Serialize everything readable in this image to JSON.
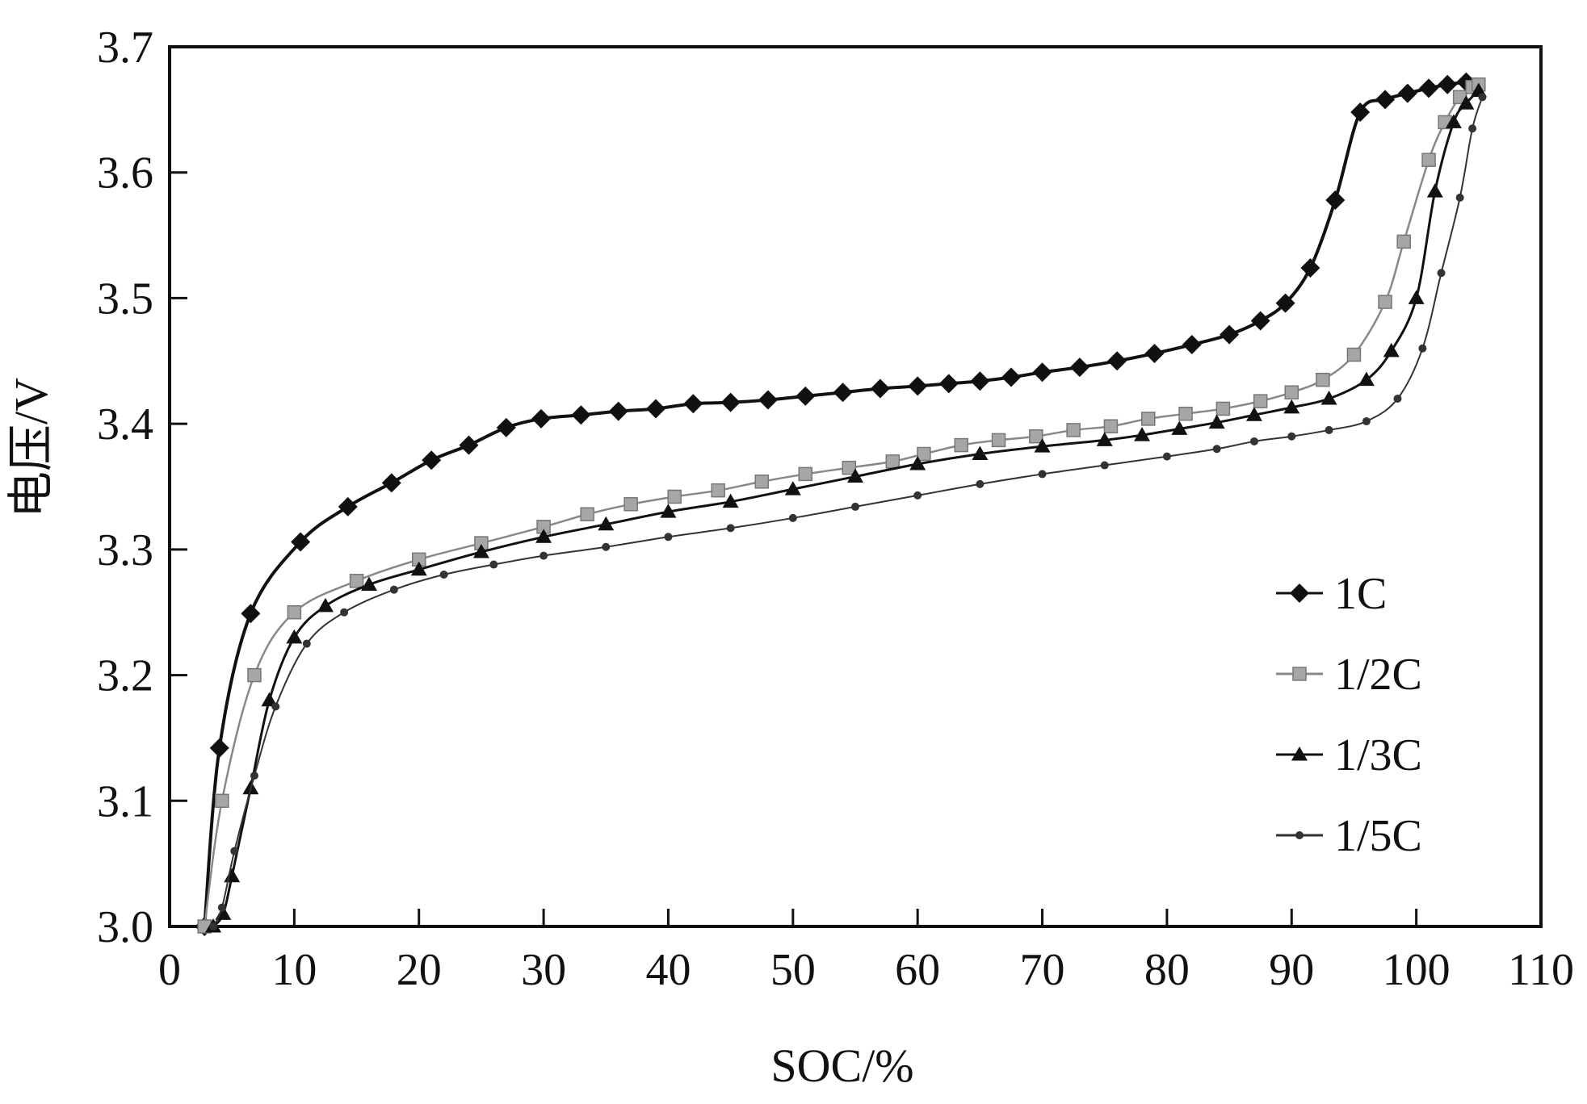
{
  "chart_data": {
    "type": "line",
    "title": "",
    "xlabel": "SOC/%",
    "ylabel": "电压/V",
    "xlim": [
      0,
      110
    ],
    "ylim": [
      3.0,
      3.7
    ],
    "xticks": [
      0,
      10,
      20,
      30,
      40,
      50,
      60,
      70,
      80,
      90,
      100,
      110
    ],
    "yticks": [
      3.0,
      3.1,
      3.2,
      3.3,
      3.4,
      3.5,
      3.6,
      3.7
    ],
    "xtick_labels": [
      "0",
      "10",
      "20",
      "30",
      "40",
      "50",
      "60",
      "70",
      "80",
      "90",
      "100",
      "110"
    ],
    "ytick_labels": [
      "3.0",
      "3.1",
      "3.2",
      "3.3",
      "3.4",
      "3.5",
      "3.6",
      "3.7"
    ],
    "grid": false,
    "legend_position": "right",
    "series": [
      {
        "name": "1C",
        "marker": "diamond",
        "color": "#111111",
        "x": [
          2.8,
          4.0,
          6.5,
          10.5,
          14.3,
          17.8,
          21.0,
          24.0,
          27.0,
          29.8,
          33.0,
          36.0,
          39.0,
          42.0,
          45.0,
          48.0,
          51.0,
          54.0,
          57.0,
          60.0,
          62.5,
          65.0,
          67.5,
          70.0,
          73.0,
          76.0,
          79.0,
          82.0,
          85.0,
          87.5,
          89.5,
          91.5,
          93.5,
          95.5,
          97.5,
          99.3,
          101.0,
          102.5,
          104.0
        ],
        "y": [
          3.0,
          3.142,
          3.249,
          3.306,
          3.334,
          3.353,
          3.371,
          3.383,
          3.397,
          3.404,
          3.407,
          3.41,
          3.412,
          3.416,
          3.417,
          3.419,
          3.422,
          3.425,
          3.428,
          3.43,
          3.432,
          3.434,
          3.437,
          3.441,
          3.445,
          3.45,
          3.456,
          3.463,
          3.471,
          3.482,
          3.496,
          3.524,
          3.578,
          3.648,
          3.658,
          3.663,
          3.667,
          3.67,
          3.672
        ]
      },
      {
        "name": "1/2C",
        "marker": "square",
        "color": "#888888",
        "x": [
          2.8,
          4.2,
          6.8,
          10.0,
          15.0,
          20.0,
          25.0,
          30.0,
          33.5,
          37.0,
          40.5,
          44.0,
          47.5,
          51.0,
          54.5,
          58.0,
          60.5,
          63.5,
          66.5,
          69.5,
          72.5,
          75.5,
          78.5,
          81.5,
          84.5,
          87.5,
          90.0,
          92.5,
          95.0,
          97.5,
          99.0,
          101.0,
          102.3,
          103.5,
          104.5,
          105.0
        ],
        "y": [
          3.0,
          3.1,
          3.2,
          3.25,
          3.275,
          3.292,
          3.305,
          3.318,
          3.328,
          3.336,
          3.342,
          3.347,
          3.354,
          3.36,
          3.365,
          3.37,
          3.376,
          3.383,
          3.387,
          3.39,
          3.395,
          3.398,
          3.404,
          3.408,
          3.412,
          3.418,
          3.425,
          3.435,
          3.455,
          3.497,
          3.545,
          3.61,
          3.64,
          3.66,
          3.668,
          3.67
        ]
      },
      {
        "name": "1/3C",
        "marker": "triangle",
        "color": "#111111",
        "x": [
          3.5,
          4.3,
          5.0,
          6.5,
          8.0,
          10.0,
          12.5,
          16.0,
          20.0,
          25.0,
          30.0,
          35.0,
          40.0,
          45.0,
          50.0,
          55.0,
          60.0,
          65.0,
          70.0,
          75.0,
          78.0,
          81.0,
          84.0,
          87.0,
          90.0,
          93.0,
          96.0,
          98.0,
          100.0,
          101.5,
          103.0,
          104.0,
          105.0
        ],
        "y": [
          3.0,
          3.01,
          3.04,
          3.11,
          3.18,
          3.23,
          3.255,
          3.272,
          3.284,
          3.298,
          3.31,
          3.32,
          3.33,
          3.338,
          3.348,
          3.358,
          3.368,
          3.376,
          3.382,
          3.387,
          3.391,
          3.396,
          3.401,
          3.407,
          3.413,
          3.42,
          3.435,
          3.458,
          3.5,
          3.585,
          3.64,
          3.655,
          3.665
        ]
      },
      {
        "name": "1/5C",
        "marker": "circle",
        "color": "#333333",
        "x": [
          3.5,
          4.2,
          5.2,
          6.8,
          8.5,
          11.0,
          14.0,
          18.0,
          22.0,
          26.0,
          30.0,
          35.0,
          40.0,
          45.0,
          50.0,
          55.0,
          60.0,
          65.0,
          70.0,
          75.0,
          80.0,
          84.0,
          87.0,
          90.0,
          93.0,
          96.0,
          98.5,
          100.5,
          102.0,
          103.5,
          104.5,
          105.3
        ],
        "y": [
          3.0,
          3.015,
          3.06,
          3.12,
          3.175,
          3.225,
          3.25,
          3.268,
          3.28,
          3.288,
          3.295,
          3.302,
          3.31,
          3.317,
          3.325,
          3.334,
          3.343,
          3.352,
          3.36,
          3.367,
          3.374,
          3.38,
          3.386,
          3.39,
          3.395,
          3.402,
          3.42,
          3.46,
          3.52,
          3.58,
          3.635,
          3.66
        ]
      }
    ]
  }
}
